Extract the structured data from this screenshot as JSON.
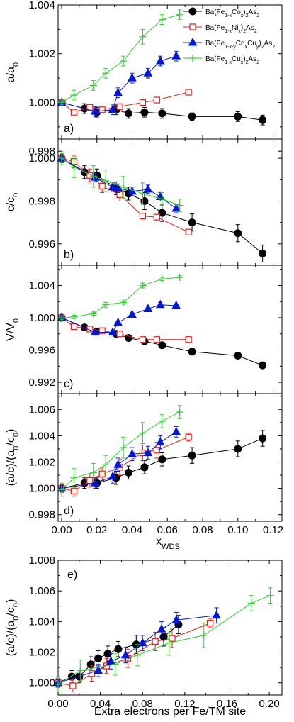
{
  "figure": {
    "width": 415,
    "height": 1018
  },
  "colors": {
    "Co": "#000000",
    "Ni": "#e0201a",
    "CoCu": "#0018d6",
    "Cu": "#33cc33"
  },
  "legend": [
    {
      "key": "Co",
      "marker": "circle",
      "parts": [
        [
          "Ba(Fe",
          ""
        ],
        [
          "1-x",
          "sub"
        ],
        [
          "Co",
          ""
        ],
        [
          "x",
          "sub"
        ],
        [
          ")",
          ""
        ],
        [
          "2",
          "sub"
        ],
        [
          "As",
          ""
        ],
        [
          "2",
          "sub"
        ]
      ]
    },
    {
      "key": "Ni",
      "marker": "square-open",
      "parts": [
        [
          "Ba(Fe",
          ""
        ],
        [
          "1-x",
          "sub"
        ],
        [
          "Ni",
          ""
        ],
        [
          "x",
          "sub"
        ],
        [
          ")",
          ""
        ],
        [
          "2",
          "sub"
        ],
        [
          "As",
          ""
        ],
        [
          "2",
          "sub"
        ]
      ]
    },
    {
      "key": "CoCu",
      "marker": "triangle",
      "parts": [
        [
          "Ba(Fe",
          ""
        ],
        [
          "1-x-y",
          "sub"
        ],
        [
          "Co",
          ""
        ],
        [
          "x",
          "sub"
        ],
        [
          "Cu",
          ""
        ],
        [
          "y",
          "sub"
        ],
        [
          ")",
          ""
        ],
        [
          "2",
          "sub"
        ],
        [
          "As",
          ""
        ],
        [
          "2",
          "sub"
        ]
      ]
    },
    {
      "key": "Cu",
      "marker": "plus",
      "parts": [
        [
          "Ba(Fe",
          ""
        ],
        [
          "1-x",
          "sub"
        ],
        [
          "Cu",
          ""
        ],
        [
          "x",
          "sub"
        ],
        [
          ")",
          ""
        ],
        [
          "2",
          "sub"
        ],
        [
          "As",
          ""
        ],
        [
          "2",
          "sub"
        ]
      ]
    }
  ],
  "chart_data": [
    {
      "type": "line",
      "panel": "a)",
      "ylabel": "a/a0",
      "xlim": [
        -0.002,
        0.125
      ],
      "ylim": [
        0.9985,
        1.004
      ],
      "yticks": [
        "0.998",
        "1.000",
        "1.002",
        "1.004"
      ],
      "series": [
        {
          "key": "Co",
          "x": [
            0,
            0.013,
            0.02,
            0.031,
            0.038,
            0.047,
            0.057,
            0.074,
            0.1,
            0.114
          ],
          "y": [
            1.0,
            0.99975,
            0.9996,
            0.9997,
            0.99955,
            0.9996,
            0.99955,
            0.99942,
            0.99942,
            0.99928
          ],
          "err": [
            0.0001,
            0.0002,
            0.0002,
            0.0002,
            0.0002,
            0.0002,
            0.0002,
            0.00015,
            0.0002,
            0.0002
          ]
        },
        {
          "key": "Ni",
          "x": [
            0,
            0.007,
            0.016,
            0.023,
            0.033,
            0.046,
            0.054,
            0.072
          ],
          "y": [
            1.0,
            0.9996,
            0.9998,
            0.9997,
            0.99983,
            1.0,
            1.0001,
            1.00042
          ],
          "err": [
            0.0001,
            0.0001,
            0.0001,
            0.0001,
            0.0001,
            0.0001,
            0.0001,
            5e-05
          ]
        },
        {
          "key": "CoCu",
          "x": [
            0,
            0.019,
            0.029,
            0.032,
            0.04,
            0.049,
            0.056,
            0.065
          ],
          "y": [
            1.0,
            0.99963,
            0.9997,
            1.0004,
            1.001,
            1.0012,
            1.0017,
            1.0019
          ],
          "err": [
            0.0001,
            0.0002,
            0.0002,
            0.0002,
            0.0002,
            0.0002,
            0.0002,
            0.0002
          ]
        },
        {
          "key": "Cu",
          "x": [
            0,
            0.007,
            0.018,
            0.025,
            0.035,
            0.046,
            0.057,
            0.067
          ],
          "y": [
            1.0,
            1.0003,
            1.0007,
            1.0012,
            1.0017,
            1.0027,
            1.0034,
            1.0036
          ],
          "err": [
            0.0001,
            0.0002,
            0.0002,
            0.0002,
            0.0002,
            0.0003,
            0.0002,
            0.0002
          ]
        }
      ]
    },
    {
      "type": "line",
      "panel": "b)",
      "ylabel": "c/c0",
      "xlim": [
        -0.002,
        0.125
      ],
      "ylim": [
        0.995,
        1.0009
      ],
      "yticks": [
        "0.996",
        "0.998",
        "1.000"
      ],
      "series": [
        {
          "key": "Co",
          "x": [
            0,
            0.013,
            0.02,
            0.031,
            0.038,
            0.047,
            0.057,
            0.074,
            0.1,
            0.114
          ],
          "y": [
            1.0,
            0.99935,
            0.9992,
            0.9986,
            0.99835,
            0.998,
            0.99745,
            0.997,
            0.9965,
            0.99555
          ],
          "err": [
            0.0002,
            0.0003,
            0.0003,
            0.0003,
            0.0003,
            0.0004,
            0.0004,
            0.0004,
            0.0004,
            0.0004
          ]
        },
        {
          "key": "Ni",
          "x": [
            0,
            0.007,
            0.016,
            0.023,
            0.033,
            0.046,
            0.054,
            0.072
          ],
          "y": [
            1.0,
            0.99985,
            0.9992,
            0.9987,
            0.9983,
            0.9973,
            0.99725,
            0.99655
          ],
          "err": [
            0.0001,
            0.0003,
            0.0003,
            0.0003,
            0.0003,
            0.0001,
            0.0001,
            0.0001
          ]
        },
        {
          "key": "CoCu",
          "x": [
            0,
            0.019,
            0.029,
            0.032,
            0.04,
            0.049,
            0.056,
            0.065
          ],
          "y": [
            1.0,
            0.9991,
            0.99865,
            0.9986,
            0.99845,
            0.99855,
            0.9982,
            0.99765
          ],
          "err": [
            0.0001,
            0.0002,
            0.0002,
            0.0002,
            0.0002,
            0.0002,
            0.0002,
            0.0002
          ]
        },
        {
          "key": "Cu",
          "x": [
            0,
            0.007,
            0.018,
            0.025,
            0.035,
            0.046,
            0.057,
            0.067
          ],
          "y": [
            1.0,
            0.9996,
            0.99915,
            0.99895,
            0.99865,
            0.99835,
            0.9981,
            0.9978
          ],
          "err": [
            0.0003,
            0.0005,
            0.0005,
            0.0005,
            0.0005,
            0.0005,
            0.0003,
            0.0003
          ]
        }
      ]
    },
    {
      "type": "line",
      "panel": "c)",
      "ylabel": "V/V0",
      "xlim": [
        -0.002,
        0.125
      ],
      "ylim": [
        0.9906,
        1.0065
      ],
      "yticks": [
        "0.992",
        "0.996",
        "1.000",
        "1.004"
      ],
      "series": [
        {
          "key": "Co",
          "x": [
            0,
            0.013,
            0.02,
            0.031,
            0.038,
            0.047,
            0.057,
            0.074,
            0.1,
            0.114
          ],
          "y": [
            1.0,
            0.9988,
            0.9983,
            0.998,
            0.9975,
            0.9971,
            0.9966,
            0.9958,
            0.9953,
            0.9941
          ],
          "err": [
            0.0002,
            0.0002,
            0.0002,
            0.0002,
            0.0003,
            0.0003,
            0.0003,
            0.0002,
            0.0003,
            0.0003
          ]
        },
        {
          "key": "Ni",
          "x": [
            0,
            0.007,
            0.016,
            0.023,
            0.033,
            0.046,
            0.054,
            0.072
          ],
          "y": [
            1.0,
            0.9989,
            0.9986,
            0.9984,
            0.998,
            0.9973,
            0.9973,
            0.9973
          ],
          "err": [
            0.0002,
            0.0002,
            0.0002,
            0.0002,
            0.0002,
            0.0002,
            0.0002,
            0.0002
          ]
        },
        {
          "key": "CoCu",
          "x": [
            0,
            0.019,
            0.029,
            0.032,
            0.04,
            0.049,
            0.056,
            0.065
          ],
          "y": [
            1.0,
            0.9982,
            0.9982,
            0.9994,
            1.0004,
            1.0011,
            1.0016,
            1.0015
          ],
          "err": [
            0.0002,
            0.0002,
            0.0002,
            0.0002,
            0.0002,
            0.0002,
            0.0003,
            0.0002
          ]
        },
        {
          "key": "Cu",
          "x": [
            0,
            0.007,
            0.018,
            0.025,
            0.035,
            0.046,
            0.057,
            0.067
          ],
          "y": [
            1.0,
            1.0001,
            1.0005,
            1.0016,
            1.0019,
            1.004,
            1.0048,
            1.005
          ],
          "err": [
            0.0002,
            0.0002,
            0.0002,
            0.0003,
            0.0002,
            0.0003,
            0.0002,
            0.0002
          ]
        }
      ]
    },
    {
      "type": "line",
      "panel": "d)",
      "ylabel": "(a/c)/(a0/c0)",
      "xlabel": "xWDS",
      "xlim": [
        -0.002,
        0.125
      ],
      "ylim": [
        0.9975,
        1.0072
      ],
      "yticks": [
        "0.998",
        "1.000",
        "1.002",
        "1.004",
        "1.006"
      ],
      "xticks": [
        "0.00",
        "0.02",
        "0.04",
        "0.06",
        "0.08",
        "0.10",
        "0.12"
      ],
      "series": [
        {
          "key": "Co",
          "x": [
            0,
            0.013,
            0.02,
            0.031,
            0.038,
            0.047,
            0.057,
            0.074,
            0.1,
            0.114
          ],
          "y": [
            1.0,
            1.0004,
            1.0004,
            1.0008,
            1.0012,
            1.0016,
            1.0022,
            1.0025,
            1.003,
            1.0038
          ],
          "err": [
            0.0002,
            0.0004,
            0.0004,
            0.0005,
            0.0005,
            0.0005,
            0.0005,
            0.0006,
            0.0006,
            0.0006
          ]
        },
        {
          "key": "Ni",
          "x": [
            0,
            0.007,
            0.016,
            0.023,
            0.033,
            0.046,
            0.054,
            0.072
          ],
          "y": [
            1.0,
            0.9998,
            1.0006,
            1.0011,
            1.0016,
            1.0027,
            1.0029,
            1.0039
          ],
          "err": [
            0.0003,
            0.0004,
            0.0005,
            0.0005,
            0.0006,
            0.0006,
            0.0006,
            0.0003
          ]
        },
        {
          "key": "CoCu",
          "x": [
            0,
            0.019,
            0.029,
            0.032,
            0.04,
            0.049,
            0.056,
            0.065
          ],
          "y": [
            1.0,
            1.0004,
            1.0009,
            1.0018,
            1.0026,
            1.0027,
            1.0035,
            1.0043
          ],
          "err": [
            0.0002,
            0.0004,
            0.0005,
            0.0005,
            0.0005,
            0.0005,
            0.0005,
            0.0004
          ]
        },
        {
          "key": "Cu",
          "x": [
            0,
            0.007,
            0.018,
            0.025,
            0.035,
            0.046,
            0.057,
            0.067
          ],
          "y": [
            0.9999,
            1.0008,
            1.0012,
            1.0018,
            1.0031,
            1.0042,
            1.0051,
            1.0058
          ],
          "err": [
            0.0005,
            0.0007,
            0.0007,
            0.0007,
            0.0008,
            0.0008,
            0.0005,
            0.0005
          ]
        }
      ]
    },
    {
      "type": "line",
      "panel": "e)",
      "ylabel": "(a/c)/(a0/c0)",
      "xlabel": "Extra electrons per Fe/TM site",
      "xlim": [
        0.0,
        0.212
      ],
      "ylim": [
        0.9992,
        1.008
      ],
      "yticks": [
        "1.000",
        "1.002",
        "1.004",
        "1.006",
        "1.008"
      ],
      "xticks": [
        "0.00",
        "0.04",
        "0.08",
        "0.12",
        "0.16",
        "0.20"
      ],
      "series": [
        {
          "key": "Co",
          "x": [
            0,
            0.013,
            0.02,
            0.031,
            0.038,
            0.047,
            0.057,
            0.074,
            0.1,
            0.114
          ],
          "y": [
            1.0,
            1.0004,
            1.0004,
            1.0012,
            1.0016,
            1.0019,
            1.0022,
            1.0025,
            1.003,
            1.0038
          ],
          "err": [
            0.0002,
            0.0004,
            0.0004,
            0.0005,
            0.0005,
            0.0005,
            0.0005,
            0.0006,
            0.0006,
            0.0006
          ]
        },
        {
          "key": "Ni",
          "x": [
            0,
            0.014,
            0.032,
            0.046,
            0.066,
            0.092,
            0.108,
            0.144
          ],
          "y": [
            1.0,
            0.9998,
            1.0006,
            1.0011,
            1.0016,
            1.0027,
            1.0029,
            1.0039
          ],
          "err": [
            0.0003,
            0.0004,
            0.0005,
            0.0005,
            0.0006,
            0.0006,
            0.0006,
            0.0003
          ]
        },
        {
          "key": "CoCu",
          "x": [
            0,
            0.038,
            0.05,
            0.064,
            0.08,
            0.098,
            0.112,
            0.15
          ],
          "y": [
            1.0,
            1.0008,
            1.0014,
            1.0018,
            1.0026,
            1.0035,
            1.0041,
            1.0044
          ],
          "err": [
            0.0002,
            0.0004,
            0.0005,
            0.0005,
            0.0005,
            0.0005,
            0.0005,
            0.0005
          ]
        },
        {
          "key": "Cu",
          "x": [
            0,
            0.021,
            0.054,
            0.075,
            0.105,
            0.138,
            0.183,
            0.201
          ],
          "y": [
            0.9999,
            1.0008,
            1.0012,
            1.0018,
            1.0026,
            1.0031,
            1.0052,
            1.0057
          ],
          "err": [
            0.0005,
            0.0007,
            0.0007,
            0.0007,
            0.0008,
            0.0008,
            0.0005,
            0.0005
          ]
        }
      ]
    }
  ]
}
